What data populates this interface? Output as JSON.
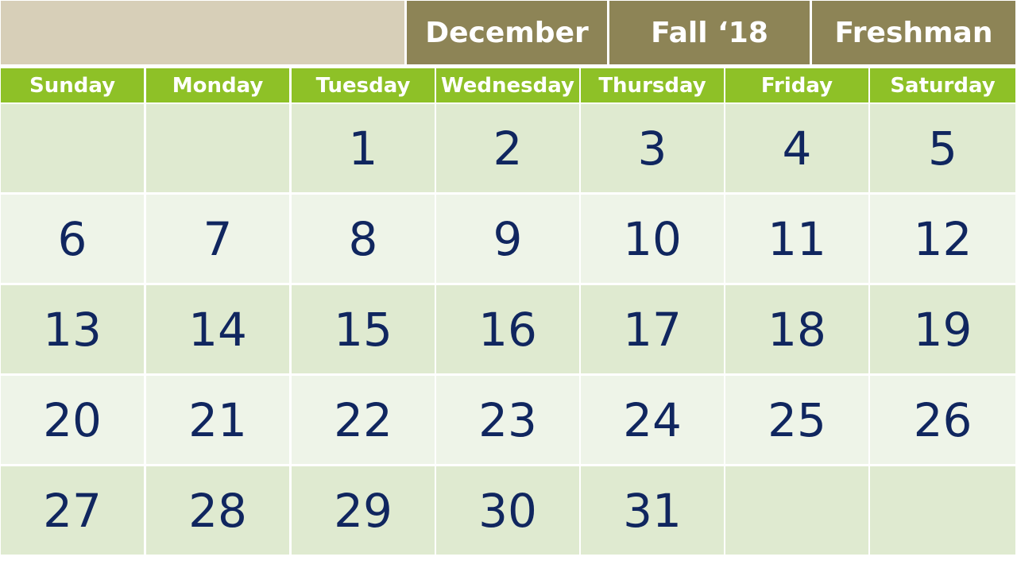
{
  "header": {
    "month": "December",
    "term": "Fall ‘18",
    "cohort": "Freshman"
  },
  "days_of_week": [
    "Sunday",
    "Monday",
    "Tuesday",
    "Wednesday",
    "Thursday",
    "Friday",
    "Saturday"
  ],
  "weeks": [
    [
      "",
      "",
      "1",
      "2",
      "3",
      "4",
      "5"
    ],
    [
      "6",
      "7",
      "8",
      "9",
      "10",
      "11",
      "12"
    ],
    [
      "13",
      "14",
      "15",
      "16",
      "17",
      "18",
      "19"
    ],
    [
      "20",
      "21",
      "22",
      "23",
      "24",
      "25",
      "26"
    ],
    [
      "27",
      "28",
      "29",
      "30",
      "31",
      "",
      ""
    ]
  ],
  "colors": {
    "header_bg": "#8d8456",
    "header_blank_bg": "#d7cfb8",
    "weekday_bg": "#8ec127",
    "row_dark_bg": "#dfead0",
    "row_light_bg": "#eef4e8",
    "date_text": "#10265f"
  }
}
